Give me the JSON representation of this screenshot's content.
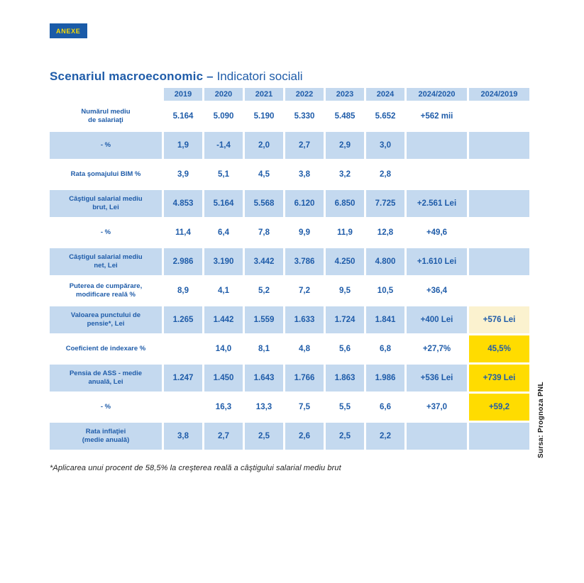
{
  "badge": {
    "label": "ANEXE"
  },
  "title": {
    "bold": "Scenariul macroeconomic –",
    "light": "Indicatori sociali"
  },
  "table": {
    "columns": [
      "2019",
      "2020",
      "2021",
      "2022",
      "2023",
      "2024",
      "2024/2020",
      "2024/2019"
    ],
    "rows": [
      {
        "label": "Numărul mediu\nde salariaţi",
        "values": [
          "5.164",
          "5.090",
          "5.190",
          "5.330",
          "5.485",
          "5.652",
          "+562 mii",
          ""
        ],
        "shade": false,
        "highlight": null
      },
      {
        "label": "- %",
        "values": [
          "1,9",
          "-1,4",
          "2,0",
          "2,7",
          "2,9",
          "3,0",
          "",
          ""
        ],
        "shade": true,
        "highlight": null
      },
      {
        "label": "Rata şomajului BIM %",
        "values": [
          "3,9",
          "5,1",
          "4,5",
          "3,8",
          "3,2",
          "2,8",
          "",
          ""
        ],
        "shade": false,
        "highlight": null
      },
      {
        "label": "Câştigul salarial mediu\nbrut, Lei",
        "values": [
          "4.853",
          "5.164",
          "5.568",
          "6.120",
          "6.850",
          "7.725",
          "+2.561 Lei",
          ""
        ],
        "shade": true,
        "highlight": null
      },
      {
        "label": "- %",
        "values": [
          "11,4",
          "6,4",
          "7,8",
          "9,9",
          "11,9",
          "12,8",
          "+49,6",
          ""
        ],
        "shade": false,
        "highlight": null
      },
      {
        "label": "Câştigul salarial mediu\nnet, Lei",
        "values": [
          "2.986",
          "3.190",
          "3.442",
          "3.786",
          "4.250",
          "4.800",
          "+1.610 Lei",
          ""
        ],
        "shade": true,
        "highlight": null
      },
      {
        "label": "Puterea de cumpărare,\nmodificare reală %",
        "values": [
          "8,9",
          "4,1",
          "5,2",
          "7,2",
          "9,5",
          "10,5",
          "+36,4",
          ""
        ],
        "shade": false,
        "highlight": null
      },
      {
        "label": "Valoarea punctului de\npensie*, Lei",
        "values": [
          "1.265",
          "1.442",
          "1.559",
          "1.633",
          "1.724",
          "1.841",
          "+400 Lei",
          "+576 Lei"
        ],
        "shade": true,
        "highlight": "cream"
      },
      {
        "label": "Coeficient de indexare %",
        "values": [
          "",
          "14,0",
          "8,1",
          "4,8",
          "5,6",
          "6,8",
          "+27,7%",
          "45,5%"
        ],
        "shade": false,
        "highlight": "yellow"
      },
      {
        "label": "Pensia de ASS - medie\nanuală, Lei",
        "values": [
          "1.247",
          "1.450",
          "1.643",
          "1.766",
          "1.863",
          "1.986",
          "+536 Lei",
          "+739 Lei"
        ],
        "shade": true,
        "highlight": "yellow"
      },
      {
        "label": "- %",
        "values": [
          "",
          "16,3",
          "13,3",
          "7,5",
          "5,5",
          "6,6",
          "+37,0",
          "+59,2"
        ],
        "shade": false,
        "highlight": "yellow"
      },
      {
        "label": "Rata inflaţiei\n(medie anuală)",
        "values": [
          "3,8",
          "2,7",
          "2,5",
          "2,6",
          "2,5",
          "2,2",
          "",
          ""
        ],
        "shade": true,
        "highlight": null
      }
    ]
  },
  "footnote": "*Aplicarea unui procent de 58,5% la creşterea reală a câştigului salarial mediu brut",
  "source": "Sursa: Prognoza PNL",
  "colors": {
    "primary_blue": "#1F5CA9",
    "row_light_blue": "#C4D9EF",
    "highlight_yellow": "#FFDC00",
    "highlight_cream": "#FBF2CF",
    "badge_bg": "#1A5BA8",
    "badge_text": "#FFDE00"
  }
}
